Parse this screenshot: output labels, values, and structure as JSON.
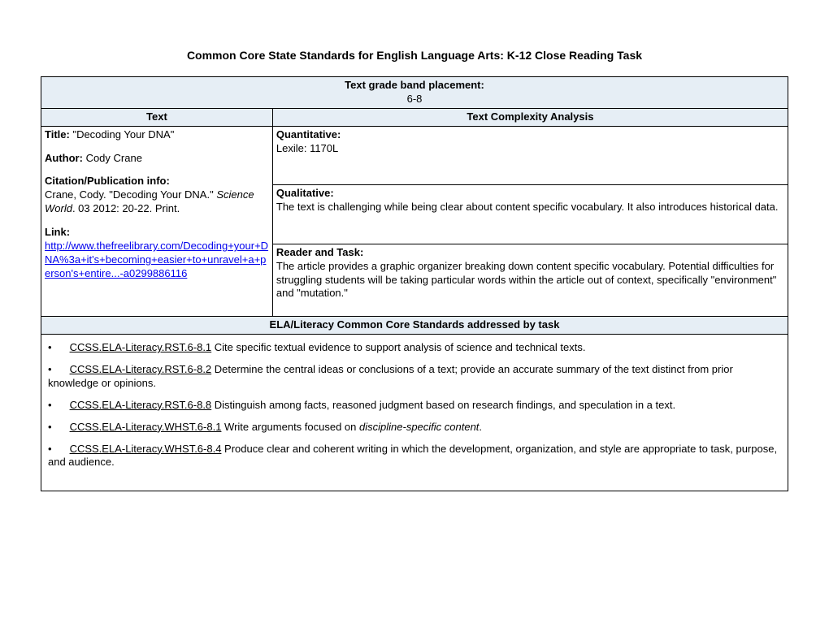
{
  "colors": {
    "header_band_bg": "#e6eef5",
    "border": "#000000",
    "link": "#0000ee",
    "text": "#000000",
    "bg": "#ffffff"
  },
  "typography": {
    "base_fontsize_pt": 10,
    "title_fontsize_pt": 11,
    "font_family": "Arial"
  },
  "doc_title": "Common Core State Standards for English Language Arts: K-12 Close Reading Task",
  "grade_band": {
    "label": "Text grade band placement:",
    "value": "6-8"
  },
  "headers": {
    "text_col": "Text",
    "analysis_col": "Text Complexity Analysis",
    "standards": "ELA/Literacy Common Core Standards addressed by task"
  },
  "text_info": {
    "title_label": "Title:",
    "title_value": "\"Decoding Your DNA\"",
    "author_label": "Author:",
    "author_value": "Cody Crane",
    "citation_label": "Citation/Publication info:",
    "citation_pre": "Crane, Cody. \"Decoding Your DNA.\" ",
    "citation_italic": "Science World",
    "citation_post": ". 03 2012: 20-22. Print.",
    "link_label": "Link:",
    "link_url": "http://www.thefreelibrary.com/Decoding+your+DNA%3a+it's+becoming+easier+to+unravel+a+person's+entire...-a0299886116"
  },
  "analysis": {
    "quantitative_label": "Quantitative:",
    "quantitative_text": "Lexile: 1170L",
    "qualitative_label": "Qualitative:",
    "qualitative_text": "The text is challenging while being clear about content specific vocabulary. It also introduces historical data.",
    "reader_label": "Reader and Task:",
    "reader_text": "The article provides a graphic organizer breaking down content specific vocabulary. Potential difficulties for struggling students will be taking particular words within the article out of context, specifically \"environment\" and \"mutation.\""
  },
  "standards": [
    {
      "code": "CCSS.ELA-Literacy.RST.6-8.1",
      "text": " Cite specific textual evidence to support analysis of science and technical texts."
    },
    {
      "code": "CCSS.ELA-Literacy.RST.6-8.2",
      "text": " Determine the central ideas or conclusions of a text; provide an accurate summary of the text distinct from prior knowledge or opinions."
    },
    {
      "code": "CCSS.ELA-Literacy.RST.6-8.8",
      "text": " Distinguish among facts, reasoned judgment based on research findings, and speculation in a text."
    },
    {
      "code": "CCSS.ELA-Literacy.WHST.6-8.1",
      "text": " Write arguments focused on ",
      "italic": "discipline-specific content",
      "post": "."
    },
    {
      "code": "CCSS.ELA-Literacy.WHST.6-8.4",
      "text": " Produce clear and coherent writing in which the development, organization, and style are appropriate to task, purpose, and audience."
    }
  ]
}
